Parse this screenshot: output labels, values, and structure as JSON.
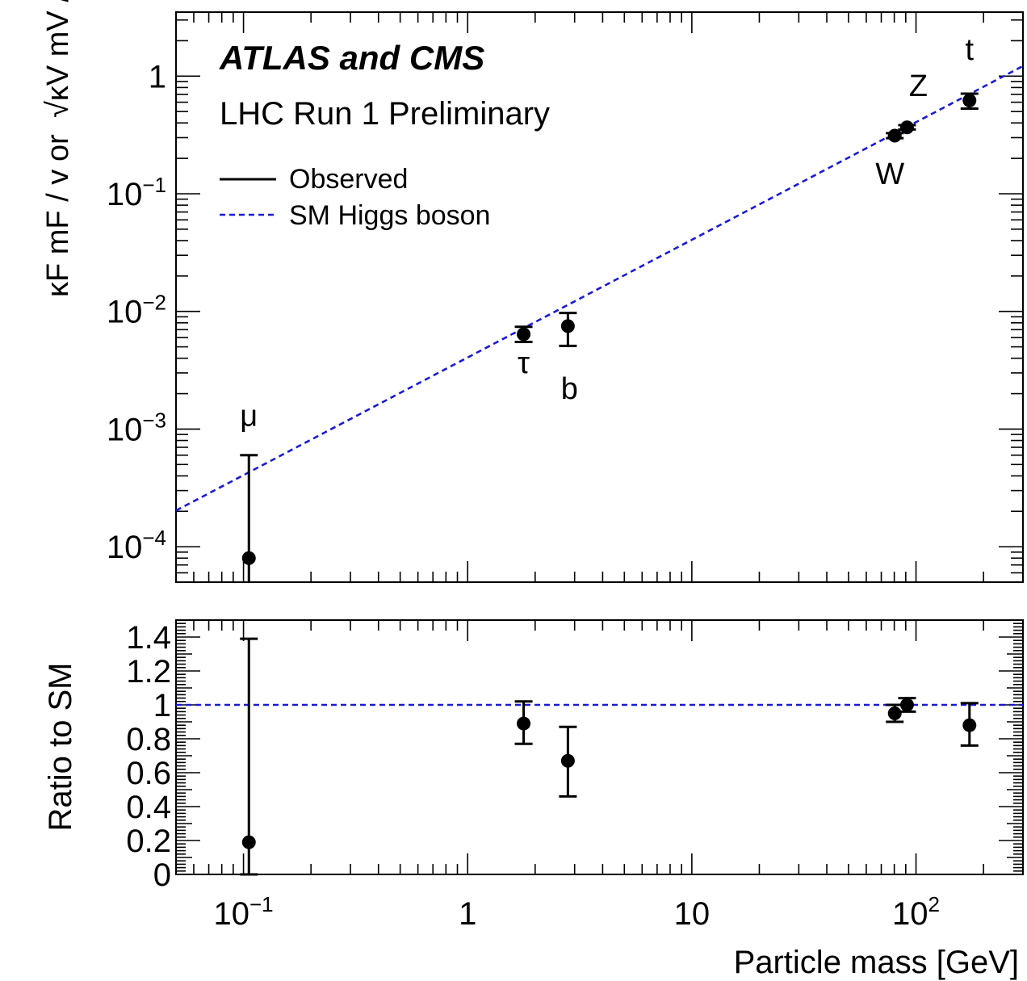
{
  "figure": {
    "experiment": "ATLAS and CMS",
    "subtitle": "LHC Run 1 Preliminary",
    "legend": {
      "observed": "Observed",
      "sm": "SM Higgs boson",
      "position": "top-left"
    },
    "colors": {
      "points": "#000000",
      "sm_line": "#1a1ad6"
    }
  },
  "chart_data": [
    {
      "type": "scatter",
      "panel": "top",
      "xlabel": "Particle mass [GeV]",
      "ylabel_fermion": "κF mF / v",
      "ylabel_joiner": "or",
      "ylabel_boson": "√κV mV / v",
      "xscale": "log",
      "yscale": "log",
      "xlim": [
        0.05,
        300
      ],
      "ylim": [
        5e-05,
        3.5
      ],
      "x_tick_labels": [
        "10⁻¹",
        "1",
        "10",
        "10²"
      ],
      "y_tick_labels": [
        "10⁻⁴",
        "10⁻³",
        "10⁻²",
        "10⁻¹",
        "1"
      ],
      "series": [
        {
          "name": "Observed",
          "points": [
            {
              "label": "μ",
              "x": 0.1057,
              "y": 8e-05,
              "y_low": 5e-05,
              "y_high": 0.0006
            },
            {
              "label": "τ",
              "x": 1.777,
              "y": 0.0064,
              "y_low": 0.0055,
              "y_high": 0.0074
            },
            {
              "label": "b",
              "x": 2.8,
              "y": 0.0075,
              "y_low": 0.0051,
              "y_high": 0.0097
            },
            {
              "label": "W",
              "x": 80.4,
              "y": 0.312,
              "y_low": 0.297,
              "y_high": 0.328
            },
            {
              "label": "Z",
              "x": 91.2,
              "y": 0.367,
              "y_low": 0.352,
              "y_high": 0.383
            },
            {
              "label": "t",
              "x": 173.2,
              "y": 0.62,
              "y_low": 0.53,
              "y_high": 0.71
            }
          ]
        },
        {
          "name": "SM Higgs boson",
          "line": {
            "slope_per_gev": 0.00406
          }
        }
      ]
    },
    {
      "type": "scatter",
      "panel": "bottom",
      "xlabel": "Particle mass [GeV]",
      "ylabel": "Ratio to SM",
      "xscale": "log",
      "xlim": [
        0.05,
        300
      ],
      "ylim": [
        0,
        1.5
      ],
      "y_tick_labels": [
        "0",
        "0.2",
        "0.4",
        "0.6",
        "0.8",
        "1",
        "1.2",
        "1.4"
      ],
      "reference_line": 1,
      "series": [
        {
          "name": "Observed",
          "points": [
            {
              "label": "μ",
              "x": 0.1057,
              "y": 0.19,
              "y_low": 0,
              "y_high": 1.39
            },
            {
              "label": "τ",
              "x": 1.777,
              "y": 0.89,
              "y_low": 0.77,
              "y_high": 1.02
            },
            {
              "label": "b",
              "x": 2.8,
              "y": 0.67,
              "y_low": 0.46,
              "y_high": 0.87
            },
            {
              "label": "W",
              "x": 80.4,
              "y": 0.95,
              "y_low": 0.9,
              "y_high": 1.0
            },
            {
              "label": "Z",
              "x": 91.2,
              "y": 1.0,
              "y_low": 0.96,
              "y_high": 1.04
            },
            {
              "label": "t",
              "x": 173.2,
              "y": 0.88,
              "y_low": 0.76,
              "y_high": 1.01
            }
          ]
        }
      ]
    }
  ]
}
